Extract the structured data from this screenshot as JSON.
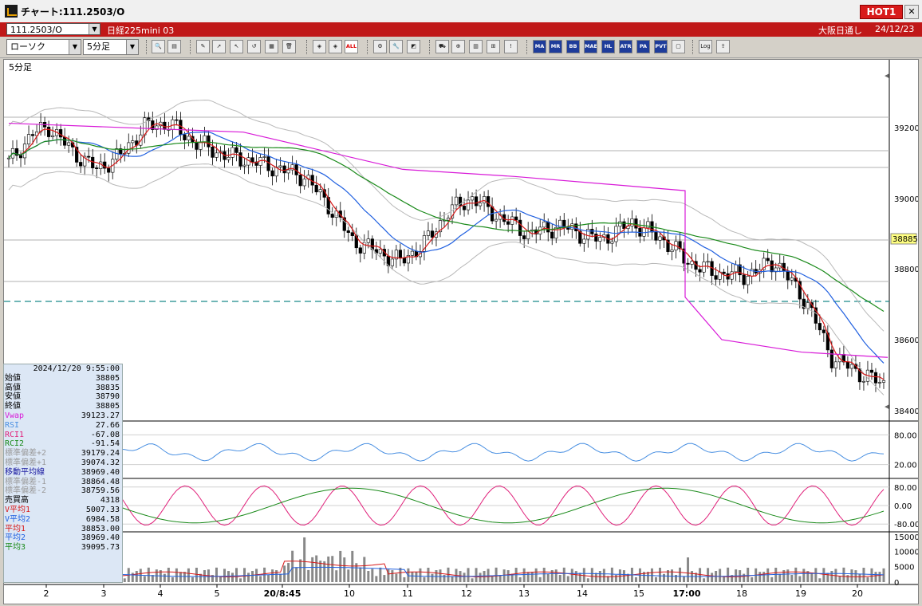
{
  "window": {
    "title": "チャート:111.2503/O",
    "hot_label": "HOT1",
    "close_glyph": "✕"
  },
  "symbol_bar": {
    "symbol_code": "111.2503/O",
    "symbol_name": "日経225mini 03",
    "market": "大阪日通し",
    "date": "24/12/23"
  },
  "toolbar": {
    "chart_type": "ローソク",
    "timeframe": "5分足",
    "buttons": [
      {
        "name": "search-icon",
        "glyph": "🔍"
      },
      {
        "name": "layout-icon",
        "glyph": "▤"
      },
      {
        "name": "pen-icon",
        "glyph": "✎"
      },
      {
        "name": "draw-icon",
        "glyph": "➚"
      },
      {
        "name": "cursor-icon",
        "glyph": "↖"
      },
      {
        "name": "undo-icon",
        "glyph": "↺"
      },
      {
        "name": "memo-icon",
        "glyph": "▦"
      },
      {
        "name": "trash-icon",
        "glyph": "🗑"
      },
      {
        "name": "marker-icon",
        "glyph": "◈"
      },
      {
        "name": "marker2-icon",
        "glyph": "◈"
      },
      {
        "name": "all-icon",
        "glyph": "ALL"
      },
      {
        "name": "settings-icon",
        "glyph": "⚙"
      },
      {
        "name": "wrench-icon",
        "glyph": "🔧"
      },
      {
        "name": "palette-icon",
        "glyph": "◩"
      },
      {
        "name": "cart-icon",
        "glyph": "⛟"
      },
      {
        "name": "zoom-icon",
        "glyph": "⊕"
      },
      {
        "name": "chart-icon",
        "glyph": "▥"
      },
      {
        "name": "fib-icon",
        "glyph": "⊞"
      },
      {
        "name": "alert-icon",
        "glyph": "!"
      },
      {
        "name": "ma-icon",
        "glyph": "MA"
      },
      {
        "name": "mr-icon",
        "glyph": "MR"
      },
      {
        "name": "bb-icon",
        "glyph": "BB"
      },
      {
        "name": "mae-icon",
        "glyph": "MAE"
      },
      {
        "name": "hl-icon",
        "glyph": "HL"
      },
      {
        "name": "atr-icon",
        "glyph": "ATR"
      },
      {
        "name": "pa-icon",
        "glyph": "PA"
      },
      {
        "name": "pvt-icon",
        "glyph": "PVT"
      },
      {
        "name": "frame-icon",
        "glyph": "▢"
      },
      {
        "name": "log-icon",
        "glyph": "Log"
      },
      {
        "name": "export-icon",
        "glyph": "⇪"
      }
    ]
  },
  "chart": {
    "timeframe_label": "5分足",
    "current_price": "38885",
    "price_ticks": [
      "39200",
      "39000",
      "38800",
      "38600",
      "38400"
    ],
    "rsi_ticks": [
      "80.00",
      "20.00"
    ],
    "rci_ticks": [
      "80.00",
      "0.00",
      "-80.00"
    ],
    "volume_ticks": [
      "15000",
      "10000",
      "5000",
      "0"
    ],
    "x_ticks": [
      {
        "label": "2",
        "bold": false
      },
      {
        "label": "3",
        "bold": false
      },
      {
        "label": "4",
        "bold": false
      },
      {
        "label": "5",
        "bold": false
      },
      {
        "label": "20/8:45",
        "bold": true
      },
      {
        "label": "10",
        "bold": false
      },
      {
        "label": "11",
        "bold": false
      },
      {
        "label": "12",
        "bold": false
      },
      {
        "label": "13",
        "bold": false
      },
      {
        "label": "14",
        "bold": false
      },
      {
        "label": "15",
        "bold": false
      },
      {
        "label": "17:00",
        "bold": true
      },
      {
        "label": "18",
        "bold": false
      },
      {
        "label": "19",
        "bold": false
      },
      {
        "label": "20",
        "bold": false
      }
    ],
    "colors": {
      "vwap": "#d81ad8",
      "ma1": "#d81818",
      "ma2": "#2060e0",
      "ma3": "#1a8a1a",
      "band": "#b8b8b8",
      "rsi": "#4a90e2",
      "rci1": "#e0207a",
      "rci2": "#1a8a1a",
      "vol": "#888888",
      "current": "#ffff80"
    }
  },
  "info_panel": {
    "datetime": "2024/12/20 9:55:00",
    "rows": [
      {
        "label": "始値",
        "value": "38805",
        "color": "#000000"
      },
      {
        "label": "高値",
        "value": "38835",
        "color": "#000000"
      },
      {
        "label": "安値",
        "value": "38790",
        "color": "#000000"
      },
      {
        "label": "終値",
        "value": "38805",
        "color": "#000000"
      },
      {
        "label": "Vwap",
        "value": "39123.27",
        "color": "#d81ad8"
      },
      {
        "label": "RSI",
        "value": "27.66",
        "color": "#4a90e2"
      },
      {
        "label": "RCI1",
        "value": "-67.08",
        "color": "#e0207a"
      },
      {
        "label": "RCI2",
        "value": "-91.54",
        "color": "#1a8a1a"
      },
      {
        "label": "標準偏差+2",
        "value": "39179.24",
        "color": "#9a9a9a"
      },
      {
        "label": "標準偏差+1",
        "value": "39074.32",
        "color": "#9a9a9a"
      },
      {
        "label": "移動平均線",
        "value": "38969.40",
        "color": "#1a1aa0"
      },
      {
        "label": "標準偏差-1",
        "value": "38864.48",
        "color": "#9a9a9a"
      },
      {
        "label": "標準偏差-2",
        "value": "38759.56",
        "color": "#9a9a9a"
      },
      {
        "label": "売買高",
        "value": "4318",
        "color": "#000000"
      },
      {
        "label": "V平均1",
        "value": "5007.33",
        "color": "#d81818"
      },
      {
        "label": "V平均2",
        "value": "6984.58",
        "color": "#2060e0"
      },
      {
        "label": "平均1",
        "value": "38853.00",
        "color": "#d81818"
      },
      {
        "label": "平均2",
        "value": "38969.40",
        "color": "#2060e0"
      },
      {
        "label": "平均3",
        "value": "39095.73",
        "color": "#1a8a1a"
      }
    ]
  }
}
